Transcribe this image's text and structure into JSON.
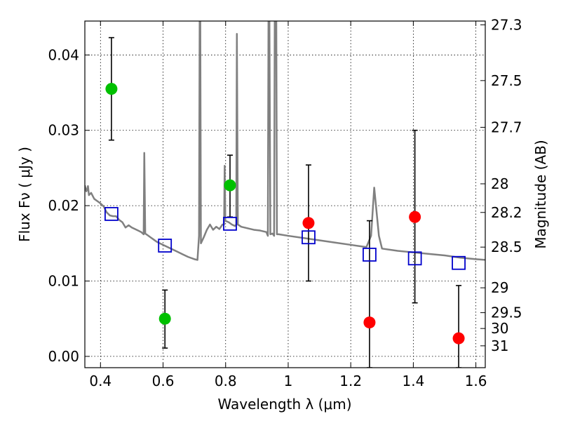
{
  "chart_data": {
    "type": "scatter",
    "title": "",
    "xlabel": "Wavelength  λ (μm)",
    "ylabel": "Flux  Fν  ( μJy )",
    "ylabel_right": "Magnitude (AB)",
    "xlim": [
      0.35,
      1.63
    ],
    "ylim": [
      -0.0015,
      0.0445
    ],
    "grid": true,
    "x_ticks": [
      0.4,
      0.6,
      0.8,
      1.0,
      1.2,
      1.4,
      1.6
    ],
    "x_tick_labels": [
      "0.4",
      "0.6",
      "0.8",
      "1",
      "1.2",
      "1.4",
      "1.6"
    ],
    "y_ticks": [
      0.0,
      0.01,
      0.02,
      0.03,
      0.04
    ],
    "y_tick_labels": [
      "0.00",
      "0.01",
      "0.02",
      "0.03",
      "0.04"
    ],
    "right_axis_ticks": [
      {
        "label": "27.3",
        "flux": 0.044
      },
      {
        "label": "27.5",
        "flux": 0.0366
      },
      {
        "label": "27.7",
        "flux": 0.0304
      },
      {
        "label": "28",
        "flux": 0.0229
      },
      {
        "label": "28.2",
        "flux": 0.0191
      },
      {
        "label": "28.5",
        "flux": 0.0145
      },
      {
        "label": "29",
        "flux": 0.0091
      },
      {
        "label": "29.5",
        "flux": 0.0058
      },
      {
        "label": "30",
        "flux": 0.0037
      },
      {
        "label": "31",
        "flux": 0.0014
      }
    ],
    "series": [
      {
        "color": "#808080",
        "style": "line",
        "points": [
          [
            0.35,
            0.0227
          ],
          [
            0.352,
            0.0223
          ],
          [
            0.355,
            0.0219
          ],
          [
            0.36,
            0.0226
          ],
          [
            0.363,
            0.0214
          ],
          [
            0.37,
            0.0217
          ],
          [
            0.38,
            0.0209
          ],
          [
            0.39,
            0.0206
          ],
          [
            0.4,
            0.0203
          ],
          [
            0.41,
            0.0199
          ],
          [
            0.42,
            0.0191
          ],
          [
            0.43,
            0.0187
          ],
          [
            0.44,
            0.0186
          ],
          [
            0.45,
            0.0186
          ],
          [
            0.46,
            0.0181
          ],
          [
            0.47,
            0.0178
          ],
          [
            0.48,
            0.0171
          ],
          [
            0.49,
            0.0174
          ],
          [
            0.5,
            0.0171
          ],
          [
            0.51,
            0.0169
          ],
          [
            0.52,
            0.0167
          ],
          [
            0.53,
            0.0165
          ],
          [
            0.538,
            0.0162
          ],
          [
            0.54,
            0.027
          ],
          [
            0.543,
            0.0163
          ],
          [
            0.55,
            0.0161
          ],
          [
            0.56,
            0.0158
          ],
          [
            0.57,
            0.0155
          ],
          [
            0.58,
            0.0152
          ],
          [
            0.6,
            0.0148
          ],
          [
            0.62,
            0.0144
          ],
          [
            0.64,
            0.014
          ],
          [
            0.66,
            0.0136
          ],
          [
            0.68,
            0.0132
          ],
          [
            0.7,
            0.0129
          ],
          [
            0.71,
            0.0128
          ],
          [
            0.715,
            0.016
          ],
          [
            0.717,
            0.0445
          ],
          [
            0.719,
            0.0445
          ],
          [
            0.721,
            0.015
          ],
          [
            0.73,
            0.0158
          ],
          [
            0.74,
            0.0168
          ],
          [
            0.75,
            0.0175
          ],
          [
            0.76,
            0.0168
          ],
          [
            0.77,
            0.0172
          ],
          [
            0.78,
            0.0169
          ],
          [
            0.79,
            0.0175
          ],
          [
            0.795,
            0.0175
          ],
          [
            0.797,
            0.0253
          ],
          [
            0.799,
            0.018
          ],
          [
            0.81,
            0.0178
          ],
          [
            0.82,
            0.0175
          ],
          [
            0.83,
            0.0173
          ],
          [
            0.834,
            0.0175
          ],
          [
            0.836,
            0.0428
          ],
          [
            0.839,
            0.0175
          ],
          [
            0.85,
            0.0172
          ],
          [
            0.87,
            0.017
          ],
          [
            0.89,
            0.0168
          ],
          [
            0.91,
            0.0167
          ],
          [
            0.93,
            0.0165
          ],
          [
            0.935,
            0.016
          ],
          [
            0.937,
            0.0445
          ],
          [
            0.94,
            0.0445
          ],
          [
            0.943,
            0.0162
          ],
          [
            0.95,
            0.0163
          ],
          [
            0.955,
            0.016
          ],
          [
            0.957,
            0.0445
          ],
          [
            0.962,
            0.0445
          ],
          [
            0.964,
            0.0162
          ],
          [
            0.97,
            0.0162
          ],
          [
            1.0,
            0.016
          ],
          [
            1.05,
            0.0157
          ],
          [
            1.1,
            0.0154
          ],
          [
            1.15,
            0.0151
          ],
          [
            1.2,
            0.0148
          ],
          [
            1.25,
            0.0145
          ],
          [
            1.265,
            0.016
          ],
          [
            1.275,
            0.0224
          ],
          [
            1.29,
            0.016
          ],
          [
            1.3,
            0.0143
          ],
          [
            1.35,
            0.014
          ],
          [
            1.4,
            0.0138
          ],
          [
            1.45,
            0.0136
          ],
          [
            1.5,
            0.0134
          ],
          [
            1.55,
            0.0131
          ],
          [
            1.6,
            0.0129
          ],
          [
            1.63,
            0.0128
          ]
        ]
      },
      {
        "color": "#00c000",
        "style": "circle-errorbar",
        "points": [
          {
            "x": 0.435,
            "y": 0.0355,
            "yerr_low": 0.0287,
            "yerr_high": 0.0423
          },
          {
            "x": 0.606,
            "y": 0.005,
            "yerr_low": 0.0011,
            "yerr_high": 0.0088
          },
          {
            "x": 0.814,
            "y": 0.0227,
            "yerr_low": 0.0185,
            "yerr_high": 0.0267
          }
        ]
      },
      {
        "color": "#ff0000",
        "style": "circle-errorbar",
        "points": [
          {
            "x": 1.065,
            "y": 0.0177,
            "yerr_low": 0.01,
            "yerr_high": 0.0254
          },
          {
            "x": 1.26,
            "y": 0.0045,
            "yerr_low": -0.0015,
            "yerr_high": 0.018
          },
          {
            "x": 1.405,
            "y": 0.0185,
            "yerr_low": 0.0071,
            "yerr_high": 0.03
          },
          {
            "x": 1.545,
            "y": 0.0024,
            "yerr_low": -0.0015,
            "yerr_high": 0.0094
          }
        ]
      },
      {
        "color": "#0000cc",
        "style": "open-square",
        "points": [
          {
            "x": 0.435,
            "y": 0.0189
          },
          {
            "x": 0.606,
            "y": 0.0147
          },
          {
            "x": 0.814,
            "y": 0.0176
          },
          {
            "x": 1.065,
            "y": 0.0158
          },
          {
            "x": 1.26,
            "y": 0.0135
          },
          {
            "x": 1.405,
            "y": 0.013
          },
          {
            "x": 1.545,
            "y": 0.0124
          }
        ]
      }
    ]
  }
}
